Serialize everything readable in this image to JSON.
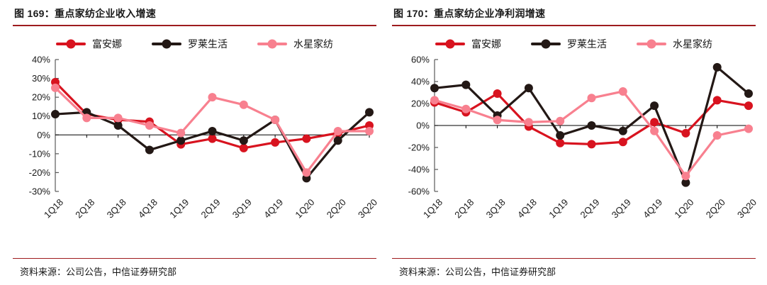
{
  "colors": {
    "accent_rule": "#9e1b1e",
    "text": "#1a1a1a",
    "axis_line": "#595959",
    "zero_line": "#000000",
    "series_red": "#d8131f",
    "series_black": "#231815",
    "series_pink": "#f8808f"
  },
  "chart_data": [
    {
      "type": "line",
      "title": "图 169：重点家纺企业收入增速",
      "source": "资料来源：公司公告，中信证券研究部",
      "categories": [
        "1Q18",
        "2Q18",
        "3Q18",
        "4Q18",
        "1Q19",
        "2Q19",
        "3Q19",
        "4Q19",
        "1Q20",
        "2Q20",
        "3Q20"
      ],
      "series": [
        {
          "name": "富安娜",
          "color": "#d8131f",
          "values": [
            28,
            11,
            8,
            7,
            -5,
            -2,
            -7,
            -4,
            -2,
            1,
            5
          ]
        },
        {
          "name": "罗莱生活",
          "color": "#231815",
          "values": [
            11,
            12,
            5,
            -8,
            -3,
            2,
            -3,
            8,
            -23,
            -3,
            12
          ]
        },
        {
          "name": "水星家纺",
          "color": "#f8808f",
          "values": [
            25,
            9,
            9,
            5,
            1,
            20,
            16,
            8,
            -20,
            2,
            2
          ]
        }
      ],
      "xlabel": "",
      "ylabel": "",
      "unit": "%",
      "ylim": [
        -30,
        40
      ],
      "ytick_step": 10,
      "grid": false,
      "legend_position": "top"
    },
    {
      "type": "line",
      "title": "图 170：重点家纺企业净利润增速",
      "source": "资料来源：公司公告，中信证券研究部",
      "categories": [
        "1Q18",
        "2Q18",
        "3Q18",
        "4Q18",
        "1Q19",
        "2Q19",
        "3Q19",
        "4Q19",
        "1Q20",
        "2Q20",
        "3Q20"
      ],
      "series": [
        {
          "name": "富安娜",
          "color": "#d8131f",
          "values": [
            21,
            12,
            29,
            -1,
            -16,
            -17,
            -15,
            3,
            -7,
            23,
            18
          ]
        },
        {
          "name": "罗莱生活",
          "color": "#231815",
          "values": [
            34,
            37,
            9,
            34,
            -9,
            0,
            -5,
            18,
            -52,
            53,
            29
          ]
        },
        {
          "name": "水星家纺",
          "color": "#f8808f",
          "values": [
            23,
            15,
            5,
            3,
            4,
            25,
            31,
            -5,
            -46,
            -9,
            -3
          ]
        }
      ],
      "xlabel": "",
      "ylabel": "",
      "unit": "%",
      "ylim": [
        -60,
        60
      ],
      "ytick_step": 20,
      "grid": false,
      "legend_position": "top"
    }
  ]
}
